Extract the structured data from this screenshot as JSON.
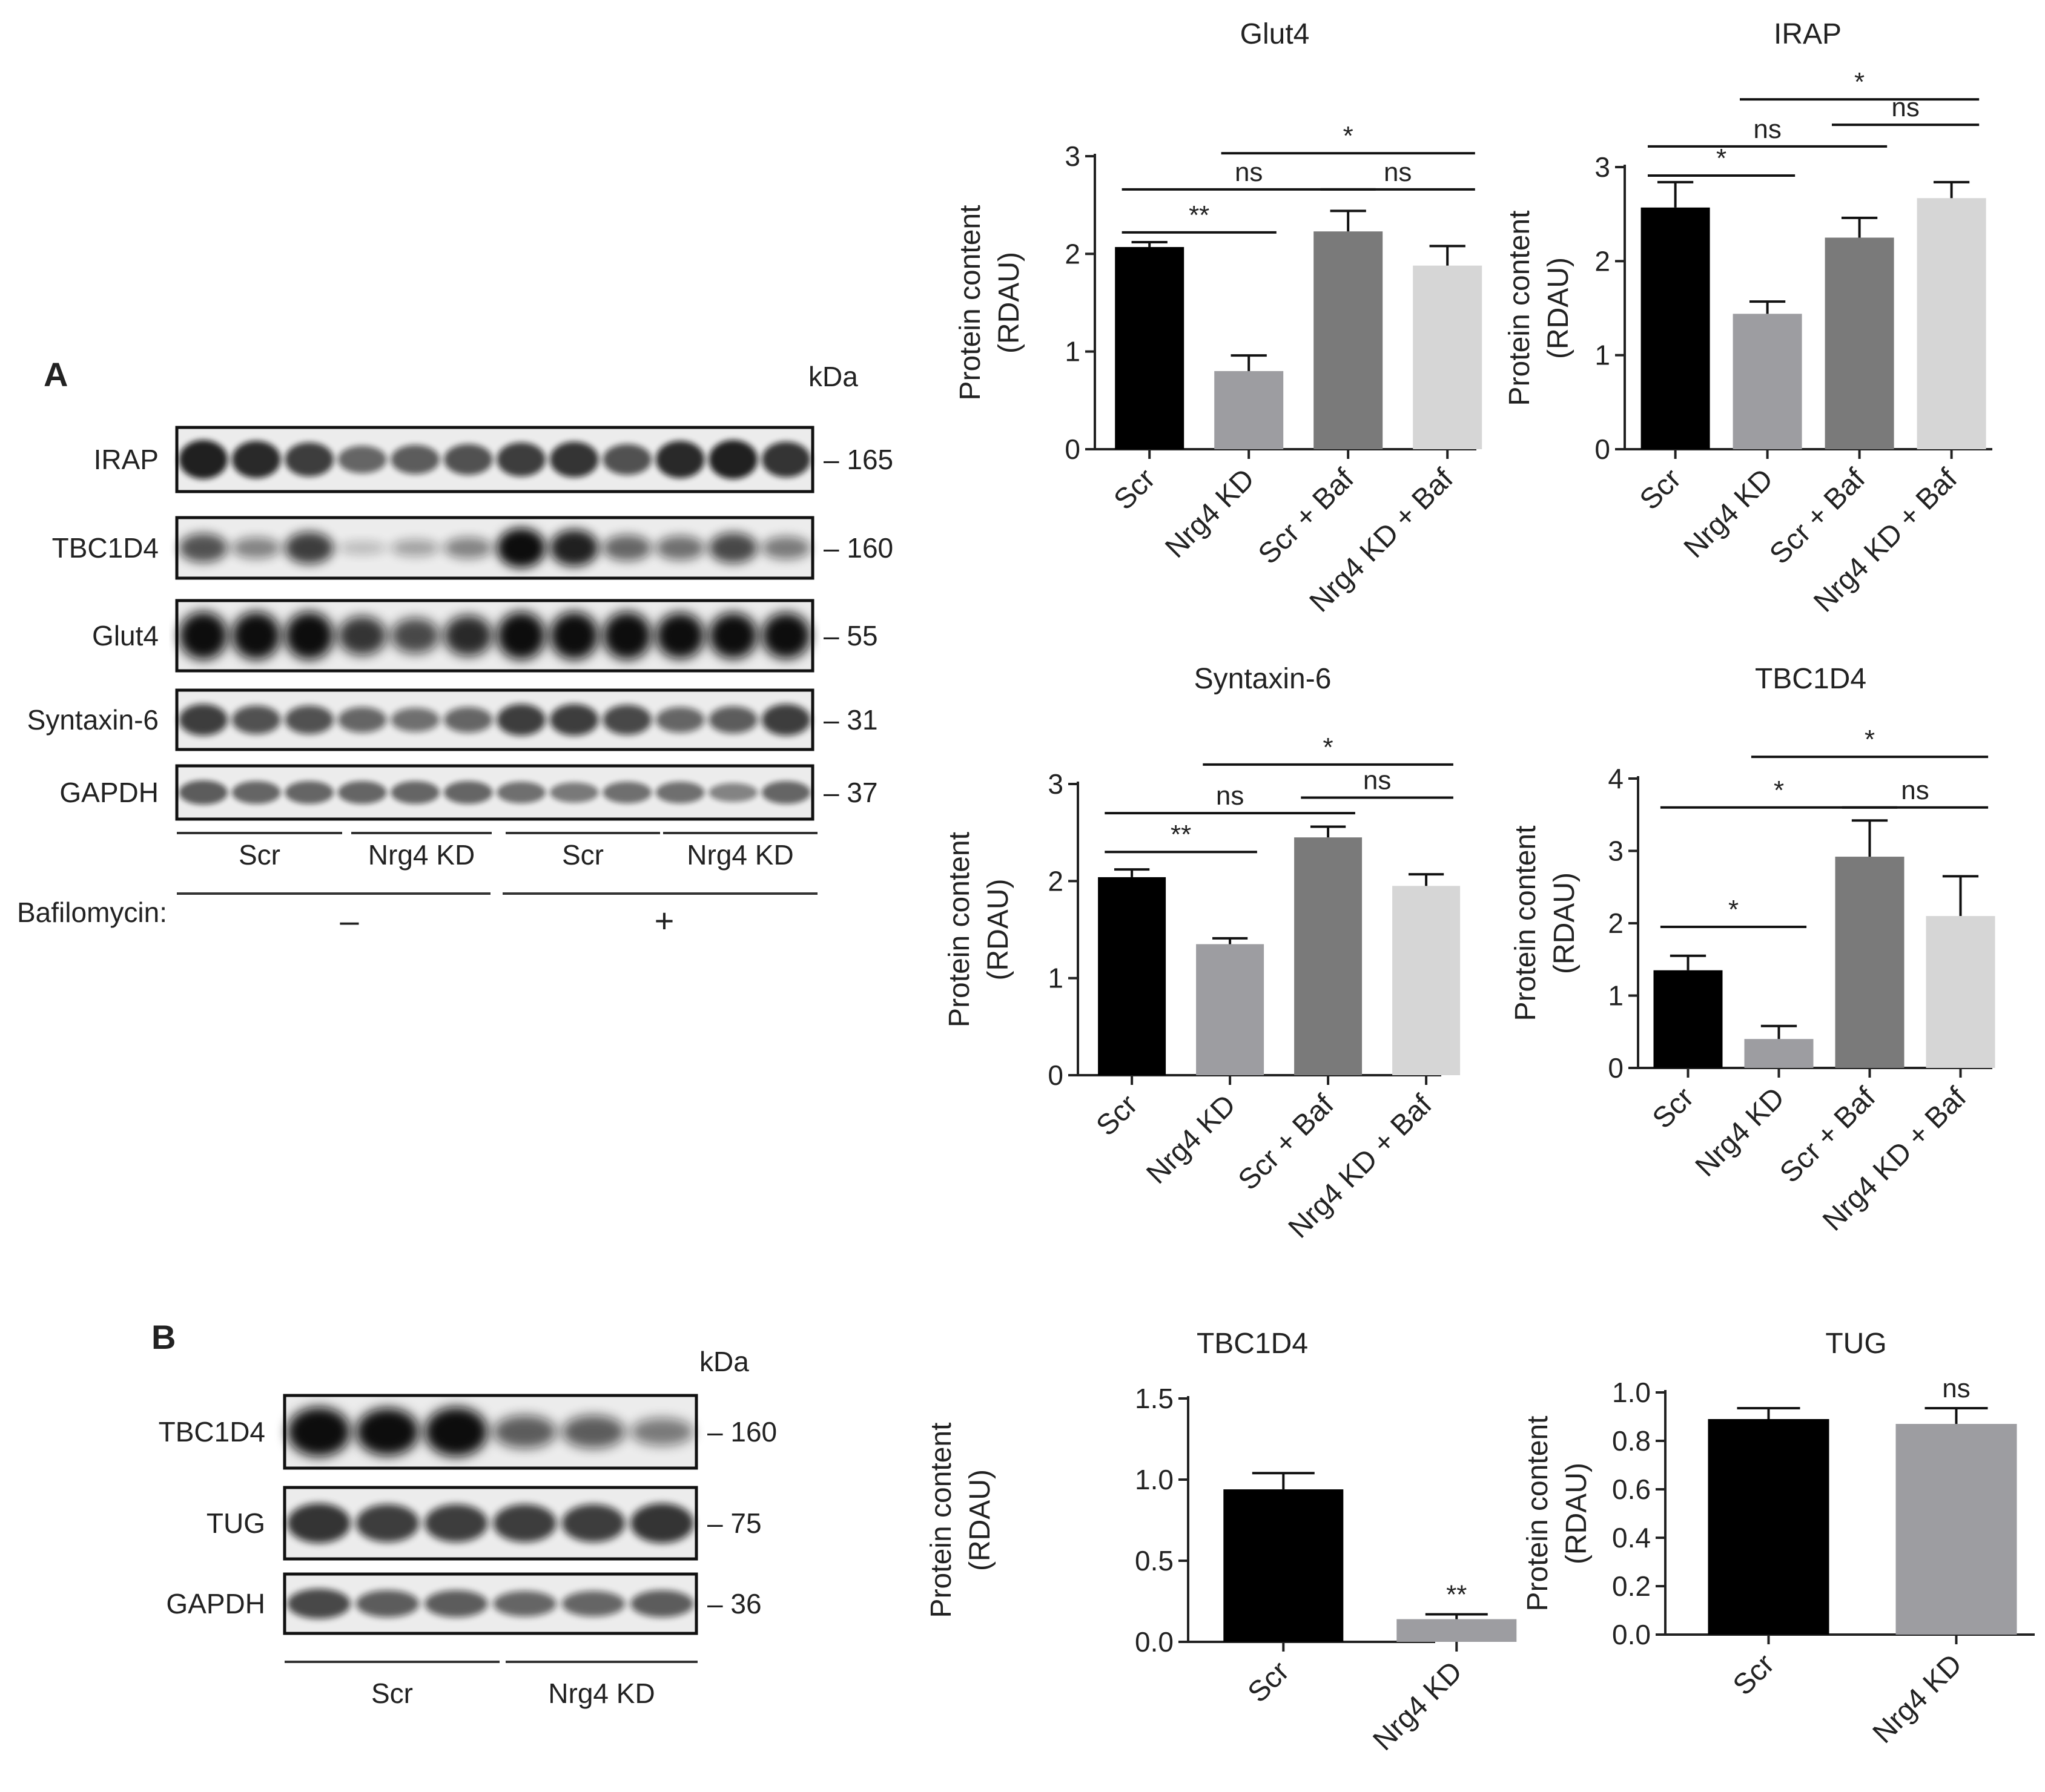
{
  "panel_a": {
    "letter": "A",
    "kda_label": "kDa",
    "blots": [
      {
        "name": "IRAP",
        "kda": "165",
        "bands": [
          0.85,
          0.8,
          0.7,
          0.5,
          0.55,
          0.6,
          0.7,
          0.75,
          0.6,
          0.8,
          0.85,
          0.75
        ],
        "blur": 0.8
      },
      {
        "name": "TBC1D4",
        "kda": "160",
        "bands": [
          0.6,
          0.35,
          0.7,
          0.08,
          0.2,
          0.35,
          0.95,
          0.85,
          0.5,
          0.45,
          0.65,
          0.4
        ],
        "blur": 1.4
      },
      {
        "name": "Glut4",
        "kda": "55",
        "bands": [
          1,
          1,
          1,
          0.75,
          0.65,
          0.8,
          1,
          1,
          1,
          0.95,
          0.95,
          0.95
        ],
        "blur": 1.6
      },
      {
        "name": "Syntaxin-6",
        "kda": "31",
        "bands": [
          0.7,
          0.6,
          0.6,
          0.5,
          0.45,
          0.5,
          0.7,
          0.7,
          0.65,
          0.5,
          0.55,
          0.7
        ],
        "blur": 0.9
      },
      {
        "name": "GAPDH",
        "kda": "37",
        "bands": [
          0.55,
          0.5,
          0.5,
          0.5,
          0.5,
          0.5,
          0.45,
          0.4,
          0.45,
          0.45,
          0.35,
          0.5
        ],
        "blur": 0.7
      }
    ],
    "groups": [
      "Scr",
      "Nrg4 KD",
      "Scr",
      "Nrg4 KD"
    ],
    "treatment_label": "Bafilomycin:",
    "treatment_minus": "–",
    "treatment_plus": "+"
  },
  "panel_b": {
    "letter": "B",
    "kda_label": "kDa",
    "blots": [
      {
        "name": "TBC1D4",
        "kda": "160",
        "bands": [
          1,
          0.95,
          1,
          0.55,
          0.55,
          0.4
        ],
        "blur": 1.6
      },
      {
        "name": "TUG",
        "kda": "75",
        "bands": [
          0.75,
          0.7,
          0.7,
          0.7,
          0.7,
          0.75
        ],
        "blur": 1.0
      },
      {
        "name": "GAPDH",
        "kda": "36",
        "bands": [
          0.65,
          0.55,
          0.55,
          0.5,
          0.5,
          0.55
        ],
        "blur": 0.9
      }
    ],
    "groups": [
      "Scr",
      "Nrg4 KD"
    ]
  },
  "chart_data": [
    {
      "type": "bar",
      "title": "Glut4",
      "ylabel": [
        "Protein content",
        "(RDAU)"
      ],
      "categories": [
        "Scr",
        "Nrg4 KD",
        "Scr + Baf",
        "Nrg4 KD + Baf"
      ],
      "values": [
        2.07,
        0.8,
        2.23,
        1.88
      ],
      "errors": [
        0.05,
        0.16,
        0.21,
        0.2
      ],
      "colors": [
        "#000000",
        "#9d9da1",
        "#7a7a7a",
        "#d6d6d6"
      ],
      "ylim": [
        0,
        3
      ],
      "yticks": [
        "0",
        "1",
        "2",
        "3"
      ],
      "tick_values": [
        0,
        1,
        2,
        3
      ],
      "annotations": [
        {
          "from": 0,
          "to": 1,
          "y": 2.22,
          "label": "**"
        },
        {
          "from": 0,
          "to": 2,
          "y": 2.66,
          "label": "ns"
        },
        {
          "from": 2,
          "to": 3,
          "y": 2.66,
          "label": "ns"
        },
        {
          "from": 1,
          "to": 3,
          "y": 3.03,
          "label": "*"
        }
      ]
    },
    {
      "type": "bar",
      "title": "IRAP",
      "ylabel": [
        "Protein content",
        "(RDAU)"
      ],
      "categories": [
        "Scr",
        "Nrg4 KD",
        "Scr + Baf",
        "Nrg4 KD + Baf"
      ],
      "values": [
        2.57,
        1.44,
        2.25,
        2.67
      ],
      "errors": [
        0.27,
        0.13,
        0.21,
        0.17
      ],
      "colors": [
        "#000000",
        "#9d9da1",
        "#7a7a7a",
        "#d6d6d6"
      ],
      "ylim": [
        0,
        3
      ],
      "yticks": [
        "0",
        "1",
        "2",
        "3"
      ],
      "tick_values": [
        0,
        1,
        2,
        3
      ],
      "annotations": [
        {
          "from": 0,
          "to": 1,
          "y": 2.91,
          "label": "*"
        },
        {
          "from": 0,
          "to": 2,
          "y": 3.22,
          "label": "ns"
        },
        {
          "from": 2,
          "to": 3,
          "y": 3.45,
          "label": "ns"
        },
        {
          "from": 1,
          "to": 3,
          "y": 3.72,
          "label": "*"
        }
      ]
    },
    {
      "type": "bar",
      "title": "Syntaxin-6",
      "ylabel": [
        "Protein content",
        "(RDAU)"
      ],
      "categories": [
        "Scr",
        "Nrg4 KD",
        "Scr + Baf",
        "Nrg4 KD + Baf"
      ],
      "values": [
        2.04,
        1.35,
        2.45,
        1.95
      ],
      "errors": [
        0.08,
        0.06,
        0.11,
        0.12
      ],
      "colors": [
        "#000000",
        "#9d9da1",
        "#7a7a7a",
        "#d6d6d6"
      ],
      "ylim": [
        0,
        3
      ],
      "yticks": [
        "0",
        "1",
        "2",
        "3"
      ],
      "tick_values": [
        0,
        1,
        2,
        3
      ],
      "annotations": [
        {
          "from": 0,
          "to": 1,
          "y": 2.3,
          "label": "**"
        },
        {
          "from": 0,
          "to": 2,
          "y": 2.7,
          "label": "ns"
        },
        {
          "from": 2,
          "to": 3,
          "y": 2.86,
          "label": "ns"
        },
        {
          "from": 1,
          "to": 3,
          "y": 3.2,
          "label": "*"
        }
      ]
    },
    {
      "type": "bar",
      "title": "TBC1D4",
      "ylabel": [
        "Protein content",
        "(RDAU)"
      ],
      "categories": [
        "Scr",
        "Nrg4 KD",
        "Scr + Baf",
        "Nrg4 KD + Baf"
      ],
      "values": [
        1.35,
        0.4,
        2.92,
        2.1
      ],
      "errors": [
        0.2,
        0.18,
        0.5,
        0.55
      ],
      "colors": [
        "#000000",
        "#9d9da1",
        "#7a7a7a",
        "#d6d6d6"
      ],
      "ylim": [
        0,
        4
      ],
      "yticks": [
        "0",
        "1",
        "2",
        "3",
        "4"
      ],
      "tick_values": [
        0,
        1,
        2,
        3,
        4
      ],
      "annotations": [
        {
          "from": 0,
          "to": 1,
          "y": 1.95,
          "label": "*"
        },
        {
          "from": 0,
          "to": 2,
          "y": 3.6,
          "label": "*"
        },
        {
          "from": 2,
          "to": 3,
          "y": 3.6,
          "label": "ns"
        },
        {
          "from": 1,
          "to": 3,
          "y": 4.3,
          "label": "*"
        }
      ]
    },
    {
      "type": "bar",
      "title": "TBC1D4",
      "ylabel": [
        "Protein content",
        "(RDAU)"
      ],
      "categories": [
        "Scr",
        "Nrg4 KD"
      ],
      "values": [
        0.94,
        0.14
      ],
      "errors": [
        0.1,
        0.03
      ],
      "colors": [
        "#000000",
        "#9d9da1"
      ],
      "ylim": [
        0,
        1.5
      ],
      "yticks": [
        "0.0",
        "0.5",
        "1.0",
        "1.5"
      ],
      "tick_values": [
        0,
        0.5,
        1.0,
        1.5
      ],
      "annotations": [
        {
          "bar": 1,
          "label": "**"
        }
      ]
    },
    {
      "type": "bar",
      "title": "TUG",
      "ylabel": [
        "Protein content",
        "(RDAU)"
      ],
      "categories": [
        "Scr",
        "Nrg4 KD"
      ],
      "values": [
        0.89,
        0.87
      ],
      "errors": [
        0.045,
        0.065
      ],
      "colors": [
        "#000000",
        "#9d9da1"
      ],
      "ylim": [
        0,
        1.0
      ],
      "yticks": [
        "0.0",
        "0.2",
        "0.4",
        "0.6",
        "0.8",
        "1.0"
      ],
      "tick_values": [
        0,
        0.2,
        0.4,
        0.6,
        0.8,
        1.0
      ],
      "annotations": [
        {
          "bar": 1,
          "label": "ns"
        }
      ]
    }
  ]
}
